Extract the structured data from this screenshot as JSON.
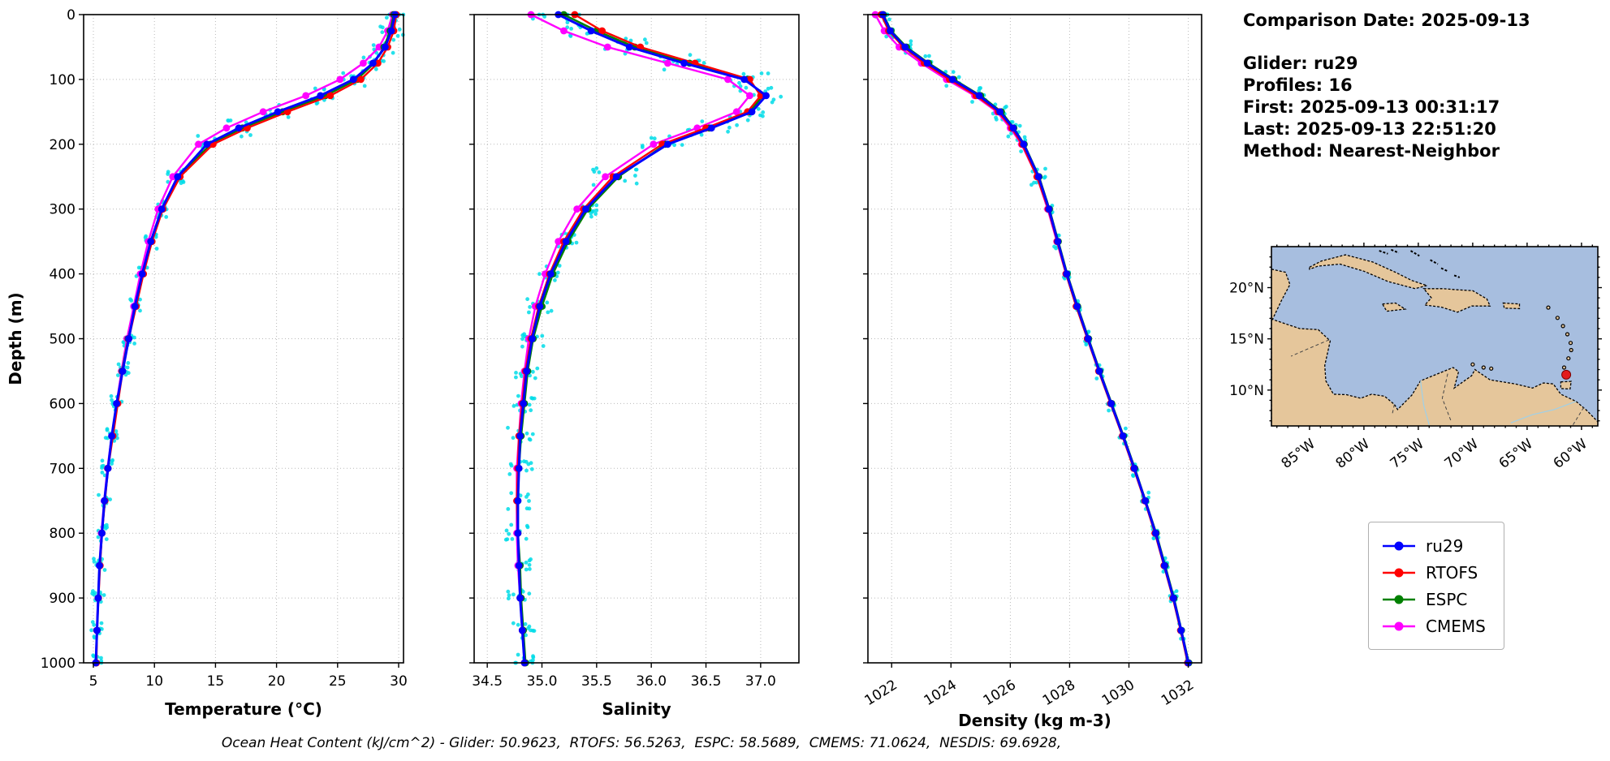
{
  "info": {
    "comparison_date": "Comparison Date: 2025-09-13",
    "glider": "Glider: ru29",
    "profiles": "Profiles: 16",
    "first": "First: 2025-09-13 00:31:17",
    "last": "Last: 2025-09-13 22:51:20",
    "method": "Method: Nearest-Neighbor"
  },
  "caption": "Ocean Heat Content (kJ/cm^2) - Glider: 50.9623,  RTOFS: 56.5263,  ESPC: 58.5689,  CMEMS: 71.0624,  NESDIS: 69.6928,",
  "legend": {
    "items": [
      {
        "label": "ru29",
        "color": "#0000ff"
      },
      {
        "label": "RTOFS",
        "color": "#ff0000"
      },
      {
        "label": "ESPC",
        "color": "#008000"
      },
      {
        "label": "CMEMS",
        "color": "#ff00ff"
      }
    ]
  },
  "map": {
    "lon_labels": [
      "85°W",
      "80°W",
      "75°W",
      "70°W",
      "65°W",
      "60°W"
    ],
    "lons": [
      -85,
      -80,
      -75,
      -70,
      -65,
      -60
    ],
    "lat_labels": [
      "20°N",
      "15°N",
      "10°N"
    ],
    "lats": [
      20,
      15,
      10
    ],
    "ocean_color": "#a7bedf",
    "land_color": "#e5c69b",
    "marker_color": "#e31b1b",
    "marker": {
      "lon": -61.4,
      "lat": 11.5
    }
  },
  "chart_data": [
    {
      "type": "line",
      "xlabel": "Temperature (°C)",
      "ylabel": "Depth (m)",
      "xlim": [
        4.2,
        30.4
      ],
      "xticks": [
        5,
        10,
        15,
        20,
        25,
        30
      ],
      "xtick_labels": [
        "5",
        "10",
        "15",
        "20",
        "25",
        "30"
      ],
      "ylim": [
        0,
        1000
      ],
      "yticks": [
        0,
        100,
        200,
        300,
        400,
        500,
        600,
        700,
        800,
        900,
        1000
      ],
      "ytick_labels": [
        "0",
        "100",
        "200",
        "300",
        "400",
        "500",
        "600",
        "700",
        "800",
        "900",
        "1000"
      ],
      "depths": [
        0,
        25,
        50,
        75,
        100,
        125,
        150,
        175,
        200,
        250,
        300,
        350,
        400,
        450,
        500,
        550,
        600,
        650,
        700,
        750,
        800,
        850,
        900,
        950,
        1000
      ],
      "series": [
        {
          "name": "ru29",
          "color": "#0000ff",
          "values": [
            29.7,
            29.4,
            28.9,
            27.9,
            26.3,
            23.6,
            20.1,
            16.9,
            14.3,
            11.9,
            10.6,
            9.7,
            9.0,
            8.4,
            7.9,
            7.4,
            6.9,
            6.5,
            6.2,
            5.9,
            5.7,
            5.5,
            5.4,
            5.3,
            5.2
          ]
        },
        {
          "name": "RTOFS",
          "color": "#ff0000",
          "values": [
            29.8,
            29.6,
            29.1,
            28.3,
            26.9,
            24.4,
            20.9,
            17.6,
            14.8,
            12.1,
            10.7,
            9.8,
            9.1,
            8.5,
            7.9,
            7.4,
            7.0,
            6.6,
            6.2,
            5.95,
            5.7,
            5.55,
            5.42,
            5.3,
            5.25
          ]
        },
        {
          "name": "ESPC",
          "color": "#008000",
          "values": [
            29.6,
            29.3,
            28.8,
            28.0,
            26.6,
            24.0,
            20.5,
            17.2,
            14.6,
            12.0,
            10.65,
            9.75,
            9.05,
            8.45,
            7.85,
            7.35,
            6.95,
            6.55,
            6.18,
            5.92,
            5.7,
            5.52,
            5.4,
            5.3,
            5.22
          ]
        },
        {
          "name": "CMEMS",
          "color": "#ff00ff",
          "values": [
            29.5,
            29.1,
            28.4,
            27.1,
            25.2,
            22.4,
            18.9,
            15.9,
            13.6,
            11.5,
            10.3,
            9.5,
            8.85,
            8.3,
            7.75,
            7.3,
            6.9,
            6.5,
            6.15,
            5.88,
            5.65,
            5.5,
            5.38,
            5.28,
            5.2
          ]
        }
      ],
      "raw": {
        "name": "glider raw points",
        "color": "#00dce8",
        "jitter": 0.5,
        "depth_jitter": 26,
        "per_level": 10
      }
    },
    {
      "type": "line",
      "xlabel": "Salinity",
      "ylabel": "Depth (m)",
      "xlim": [
        34.38,
        37.35
      ],
      "xticks": [
        34.5,
        35.0,
        35.5,
        36.0,
        36.5,
        37.0
      ],
      "xtick_labels": [
        "34.5",
        "35.0",
        "35.5",
        "36.0",
        "36.5",
        "37.0"
      ],
      "ylim": [
        0,
        1000
      ],
      "yticks": [
        0,
        100,
        200,
        300,
        400,
        500,
        600,
        700,
        800,
        900,
        1000
      ],
      "ytick_labels": [
        "0",
        "100",
        "200",
        "300",
        "400",
        "500",
        "600",
        "700",
        "800",
        "900",
        "1000"
      ],
      "depths": [
        0,
        25,
        50,
        75,
        100,
        125,
        150,
        175,
        200,
        250,
        300,
        350,
        400,
        450,
        500,
        550,
        600,
        650,
        700,
        750,
        800,
        850,
        900,
        950,
        1000
      ],
      "series": [
        {
          "name": "ru29",
          "color": "#0000ff",
          "values": [
            35.15,
            35.45,
            35.8,
            36.3,
            36.85,
            37.05,
            36.92,
            36.55,
            36.15,
            35.68,
            35.4,
            35.22,
            35.08,
            34.98,
            34.91,
            34.86,
            34.83,
            34.8,
            34.79,
            34.78,
            34.78,
            34.79,
            34.8,
            34.82,
            34.84
          ]
        },
        {
          "name": "RTOFS",
          "color": "#ff0000",
          "values": [
            35.3,
            35.55,
            35.9,
            36.4,
            36.9,
            37.0,
            36.88,
            36.5,
            36.1,
            35.65,
            35.38,
            35.2,
            35.07,
            34.97,
            34.9,
            34.85,
            34.82,
            34.79,
            34.78,
            34.77,
            34.78,
            34.79,
            34.8,
            34.82,
            34.84
          ]
        },
        {
          "name": "ESPC",
          "color": "#008000",
          "values": [
            35.2,
            35.5,
            35.85,
            36.35,
            36.88,
            37.02,
            36.9,
            36.53,
            36.13,
            35.7,
            35.42,
            35.24,
            35.1,
            35.0,
            34.92,
            34.87,
            34.84,
            34.81,
            34.79,
            34.78,
            34.78,
            34.8,
            34.81,
            34.83,
            34.85
          ]
        },
        {
          "name": "CMEMS",
          "color": "#ff00ff",
          "values": [
            34.9,
            35.2,
            35.6,
            36.15,
            36.7,
            36.9,
            36.78,
            36.42,
            36.02,
            35.58,
            35.32,
            35.15,
            35.03,
            34.94,
            34.88,
            34.84,
            34.81,
            34.79,
            34.77,
            34.77,
            34.77,
            34.78,
            34.8,
            34.82,
            34.84
          ]
        }
      ],
      "raw": {
        "name": "glider raw points",
        "color": "#00dce8",
        "jitter": 0.12,
        "depth_jitter": 26,
        "per_level": 10
      }
    },
    {
      "type": "line",
      "xlabel": "Density (kg m-3)",
      "ylabel": "Depth (m)",
      "xlim": [
        1021.2,
        1032.45
      ],
      "xticks": [
        1022,
        1024,
        1026,
        1028,
        1030,
        1032
      ],
      "xtick_labels": [
        "1022",
        "1024",
        "1026",
        "1028",
        "1030",
        "1032"
      ],
      "xtick_rotation": 32,
      "ylim": [
        0,
        1000
      ],
      "yticks": [
        0,
        100,
        200,
        300,
        400,
        500,
        600,
        700,
        800,
        900,
        1000
      ],
      "ytick_labels": [
        "0",
        "100",
        "200",
        "300",
        "400",
        "500",
        "600",
        "700",
        "800",
        "900",
        "1000"
      ],
      "depths": [
        0,
        25,
        50,
        75,
        100,
        125,
        150,
        175,
        200,
        250,
        300,
        350,
        400,
        450,
        500,
        550,
        600,
        650,
        700,
        750,
        800,
        850,
        900,
        950,
        1000
      ],
      "series": [
        {
          "name": "ru29",
          "color": "#0000ff",
          "values": [
            1021.7,
            1021.95,
            1022.45,
            1023.2,
            1024.05,
            1024.95,
            1025.65,
            1026.1,
            1026.45,
            1026.95,
            1027.3,
            1027.6,
            1027.9,
            1028.25,
            1028.62,
            1029.0,
            1029.4,
            1029.8,
            1030.18,
            1030.55,
            1030.9,
            1031.2,
            1031.5,
            1031.76,
            1032.0
          ]
        },
        {
          "name": "RTOFS",
          "color": "#ff0000",
          "values": [
            1021.65,
            1021.9,
            1022.4,
            1023.1,
            1023.95,
            1024.85,
            1025.6,
            1026.05,
            1026.4,
            1026.9,
            1027.28,
            1027.58,
            1027.88,
            1028.22,
            1028.6,
            1028.98,
            1029.38,
            1029.78,
            1030.16,
            1030.53,
            1030.88,
            1031.18,
            1031.48,
            1031.74,
            1031.98
          ]
        },
        {
          "name": "ESPC",
          "color": "#008000",
          "values": [
            1021.72,
            1021.98,
            1022.5,
            1023.25,
            1024.1,
            1025.0,
            1025.7,
            1026.12,
            1026.47,
            1026.97,
            1027.32,
            1027.62,
            1027.92,
            1028.27,
            1028.64,
            1029.02,
            1029.42,
            1029.82,
            1030.2,
            1030.56,
            1030.92,
            1031.22,
            1031.52,
            1031.77,
            1032.02
          ]
        },
        {
          "name": "CMEMS",
          "color": "#ff00ff",
          "values": [
            1021.45,
            1021.75,
            1022.25,
            1023.0,
            1023.85,
            1024.8,
            1025.55,
            1026.0,
            1026.38,
            1026.9,
            1027.26,
            1027.57,
            1027.88,
            1028.24,
            1028.6,
            1029.0,
            1029.4,
            1029.78,
            1030.17,
            1030.54,
            1030.88,
            1031.19,
            1031.49,
            1031.75,
            1032.0
          ]
        }
      ],
      "raw": {
        "name": "glider raw points",
        "color": "#00dce8",
        "jitter": 0.12,
        "depth_jitter": 26,
        "per_level": 8
      }
    }
  ]
}
